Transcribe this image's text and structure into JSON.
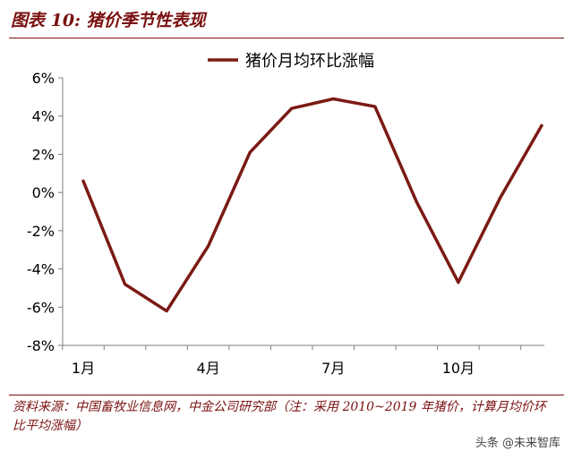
{
  "figure_title": "图表 10:  猪价季节性表现",
  "source_note": "资料来源：中国畜牧业信息网，中金公司研究部（注：采用 2010~2019 年猪价，计算月均价环比平均涨幅）",
  "watermark": "头条 @未来智库",
  "chart_data": {
    "type": "line",
    "title": "",
    "legend_position": "top-center",
    "x": [
      "1月",
      "2月",
      "3月",
      "4月",
      "5月",
      "6月",
      "7月",
      "8月",
      "9月",
      "10月",
      "11月",
      "12月"
    ],
    "x_tick_labels": [
      "1月",
      "4月",
      "7月",
      "10月"
    ],
    "y_tick_labels": [
      "6%",
      "4%",
      "2%",
      "0%",
      "-2%",
      "-4%",
      "-6%",
      "-8%"
    ],
    "ylim": [
      -8,
      6
    ],
    "y_unit": "%",
    "grid": false,
    "series": [
      {
        "name": "猪价月均环比涨幅",
        "color": "#7b1a14",
        "values": [
          0.6,
          -4.8,
          -6.2,
          -2.8,
          2.1,
          4.4,
          4.9,
          4.5,
          -0.5,
          -4.7,
          -0.3,
          3.5
        ]
      }
    ]
  }
}
